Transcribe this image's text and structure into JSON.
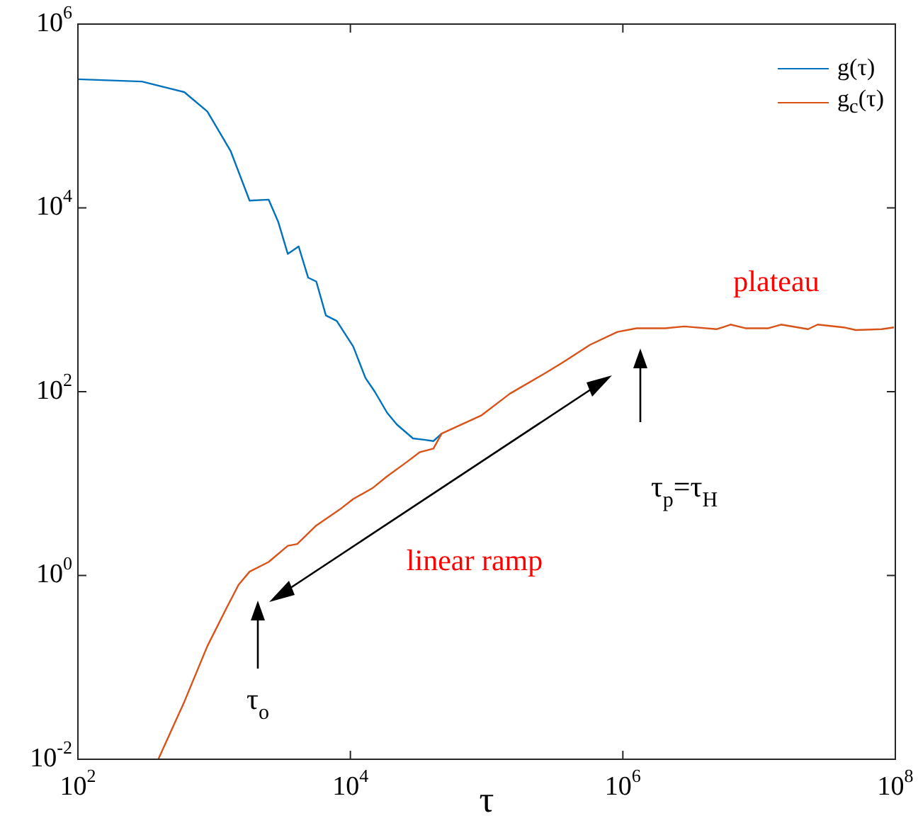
{
  "chart_data": {
    "type": "line",
    "xlabel": "τ",
    "log": "xy",
    "legend": "top right",
    "marker": "none",
    "xlim": [
      100,
      100000000
    ],
    "ylim": [
      0.01,
      1000000
    ],
    "xticks": [
      {
        "value": 100,
        "label": "10$^{2}$"
      },
      {
        "value": 10000,
        "label": "10$^{4}$"
      },
      {
        "value": 1000000,
        "label": "10$^{6}$"
      },
      {
        "value": 100000000,
        "label": "10$^{8}$"
      }
    ],
    "yticks": [
      {
        "value": 0.01,
        "label": "10$^{-2}$"
      },
      {
        "value": 1,
        "label": "10$^{0}$"
      },
      {
        "value": 100,
        "label": "10$^{2}$"
      },
      {
        "value": 10000,
        "label": "10$^{4}$"
      },
      {
        "value": 1000000,
        "label": "10$^{6}$"
      }
    ],
    "series": [
      {
        "name": "g(τ)",
        "color": "#0072bd",
        "x": [
          100,
          295,
          603,
          891,
          1320,
          1820,
          2510,
          2950,
          3470,
          4170,
          4900,
          5620,
          6610,
          7940,
          10500,
          12900,
          15100,
          18600,
          21900,
          28800,
          34700,
          40700,
          46800
        ],
        "values": [
          251000,
          237000,
          182000,
          112000,
          41700,
          12000,
          12300,
          7080,
          3160,
          3800,
          1740,
          1580,
          676,
          589,
          309,
          141,
          100,
          59,
          44,
          31,
          30,
          29,
          35
        ]
      },
      {
        "name": "g$_{c}$(τ)",
        "color": "#d95319",
        "x": [
          389,
          603,
          891,
          1230,
          1510,
          1820,
          2510,
          3470,
          4070,
          5620,
          8320,
          10500,
          14500,
          18600,
          25700,
          32400,
          40700,
          46800,
          91200,
          148000,
          275000,
          355000,
          575000,
          912000,
          1260000,
          2040000,
          2820000,
          4900000,
          6170000,
          7940000,
          11700000,
          14500000,
          22900000,
          26900000,
          41700000,
          51300000,
          79400000,
          97700000
        ],
        "values": [
          0.01,
          0.042,
          0.17,
          0.44,
          0.79,
          1.1,
          1.4,
          2.1,
          2.2,
          3.5,
          5.2,
          6.8,
          8.9,
          12,
          17,
          22,
          24,
          35,
          55,
          95,
          162,
          204,
          324,
          447,
          490,
          490,
          513,
          479,
          537,
          490,
          490,
          537,
          479,
          537,
          501,
          468,
          479,
          501
        ]
      }
    ],
    "annotations": [
      "plateau",
      "linear ramp",
      "τ$_{o}$",
      "τ$_{p}$=τ$_{H}$"
    ]
  }
}
